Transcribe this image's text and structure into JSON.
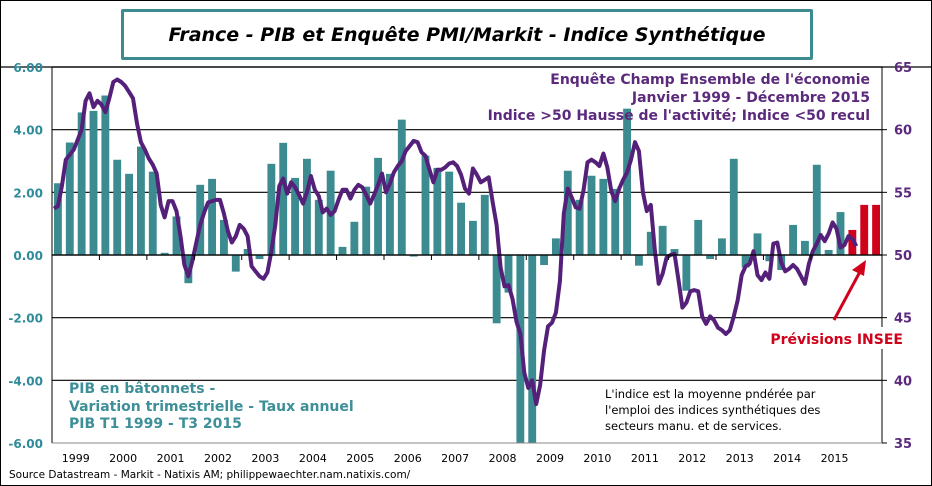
{
  "chart_data": {
    "type": "bar+line",
    "title": "France - PIB et Enquête PMI/Markit - Indice Synthétique",
    "colors": {
      "gdp": "#3b8b91",
      "forecast": "#d0021b",
      "pmi": "#55207a",
      "left_axis": "#2f8a99",
      "right_axis": "#5b2a7c",
      "title_border": "#3d8a8f"
    },
    "grid": true,
    "y_left": {
      "lim": [
        -6,
        6
      ],
      "ticks": [
        "6.00",
        "4.00",
        "2.00",
        "0.00",
        "-2.00",
        "-4.00",
        "-6.00"
      ]
    },
    "y_right": {
      "lim": [
        35,
        65
      ],
      "ticks": [
        "65",
        "60",
        "55",
        "50",
        "45",
        "40",
        "35"
      ]
    },
    "x_ticks": [
      "1999",
      "2000",
      "2001",
      "2002",
      "2003",
      "2004",
      "2005",
      "2006",
      "2007",
      "2008",
      "2009",
      "2010",
      "2011",
      "2012",
      "2013",
      "2014",
      "2015"
    ],
    "gdp": {
      "axis": "left",
      "start": "1999T1",
      "end": "2015T3",
      "frequency": "quarterly",
      "values": [
        2.29,
        3.59,
        4.55,
        4.6,
        5.09,
        3.04,
        2.59,
        3.46,
        2.66,
        0.07,
        1.23,
        -0.9,
        2.24,
        2.43,
        1.12,
        -0.53,
        0.19,
        -0.13,
        2.91,
        3.58,
        2.46,
        3.07,
        1.76,
        2.69,
        0.26,
        1.06,
        2.18,
        3.1,
        2.59,
        4.32,
        -0.05,
        3.17,
        2.78,
        2.66,
        1.67,
        1.09,
        1.92,
        -2.18,
        -1.2,
        -6.2,
        -6.4,
        -0.32,
        0.53,
        2.69,
        1.76,
        2.53,
        2.43,
        2.11,
        4.67,
        -0.34,
        0.74,
        0.93,
        0.19,
        -1.14,
        1.12,
        -0.13,
        0.53,
        3.07,
        -0.4,
        0.69,
        -0.2,
        -0.48,
        0.96,
        0.45,
        2.88,
        0.16,
        1.37
      ]
    },
    "forecast": {
      "axis": "left",
      "periods": [
        "2015T4",
        "2016T1",
        "2016T2"
      ],
      "values": [
        0.8,
        1.6,
        1.6
      ]
    },
    "pmi": {
      "axis": "right",
      "start": "1999-01",
      "end": "2015-12",
      "frequency": "monthly",
      "values": [
        53.7,
        53.9,
        55.5,
        57.6,
        58,
        58.4,
        59.2,
        60,
        62.3,
        62.9,
        61.8,
        62.3,
        62,
        61.4,
        62.5,
        63.8,
        64,
        63.8,
        63.5,
        63,
        62.5,
        60.5,
        59,
        58.4,
        57.7,
        57.2,
        56.5,
        54,
        53,
        54.3,
        54.3,
        53.5,
        51.5,
        49.2,
        48.3,
        49.5,
        51,
        52.4,
        53.4,
        54.2,
        54.3,
        54.4,
        54.4,
        53.3,
        51.9,
        51,
        51.5,
        52.4,
        52.1,
        51.5,
        49.1,
        48.7,
        48.3,
        48.1,
        48.6,
        50.3,
        52.4,
        55.5,
        56.1,
        54.9,
        55.8,
        55.4,
        54.8,
        54.1,
        55,
        56.3,
        55.2,
        54.7,
        53.4,
        53.7,
        53.2,
        53.5,
        54.4,
        55.2,
        55.2,
        54.5,
        55.2,
        55.6,
        55.4,
        54.8,
        54.1,
        54.8,
        55.6,
        56.5,
        55,
        55.7,
        56.6,
        57.1,
        57.5,
        58.3,
        58.7,
        59.1,
        59,
        58.2,
        57.9,
        56.8,
        55.8,
        56.8,
        56.8,
        57,
        57.3,
        57.4,
        57.1,
        56.4,
        55.3,
        54.9,
        56.9,
        56.4,
        55.8,
        56,
        56.2,
        54.2,
        52.4,
        49,
        47.5,
        47.6,
        46.5,
        44.7,
        43.7,
        40.6,
        39.4,
        40,
        38.1,
        39.6,
        42.4,
        44.3,
        44.6,
        45.4,
        47.9,
        53.3,
        55.3,
        54.6,
        53.8,
        53.7,
        55.2,
        57.4,
        57.6,
        57.4,
        57.1,
        58.1,
        57,
        55.1,
        54.3,
        55.3,
        56,
        56.6,
        57.6,
        59,
        58.3,
        55,
        53.5,
        54,
        50.5,
        47.7,
        48.5,
        49.8,
        50,
        50.1,
        48,
        45.8,
        46.2,
        47.1,
        47.2,
        47.1,
        45.1,
        44.5,
        45.1,
        44.8,
        44.2,
        44,
        43.7,
        44,
        45.1,
        46.4,
        48.4,
        49.1,
        49.3,
        50.3,
        48.4,
        48,
        48.6,
        48.1,
        50.9,
        51,
        49.4,
        48.7,
        48.9,
        49.2,
        48.9,
        48.3,
        47.7,
        49.3,
        50.3,
        50.9,
        51.6,
        51.1,
        51.7,
        52.6,
        52.1,
        50.6,
        50.8,
        51.5,
        51.3,
        50.7
      ]
    },
    "annotations": {
      "pmi_lines": [
        "Enquête Champ Ensemble de l'économie",
        "Janvier 1999 - Décembre  2015",
        "Indice  >50 Hausse de l'activité;  Indice  <50 recul"
      ],
      "gdp_lines": [
        "PIB en bâtonnets -",
        "Variation  trimestrielle  - Taux annuel",
        "PIB T1 1999 - T3 2015"
      ],
      "note_lines": [
        "L'indice  est la  moyenne  pndérée  par",
        "l'emploi   des indices  synthétiques  des",
        "secteurs manu.  et de  services."
      ],
      "forecast_label": "Prévisions INSEE"
    },
    "source": "Source Datastream - Markit - Natixis AM; philippewaechter.nam.natixis.com/"
  }
}
